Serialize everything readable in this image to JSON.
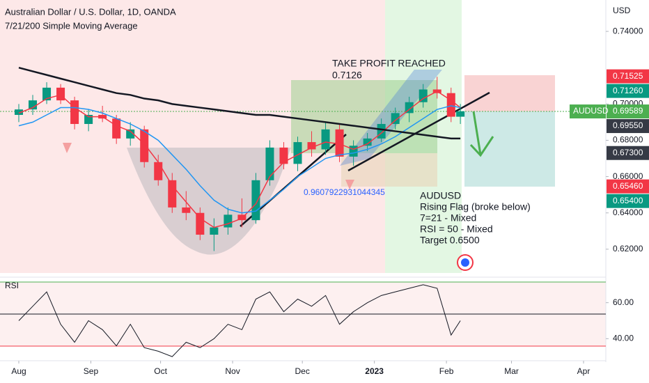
{
  "chart_data": {
    "type": "candlestick",
    "title": "Australian Dollar / U.S. Dollar, 1D, OANDA",
    "subtitle": "7/21/200 Simple Moving Average",
    "currency": "USD",
    "x": [
      0,
      6,
      12,
      18,
      24,
      30,
      36,
      42,
      48,
      54,
      60,
      66,
      72,
      78,
      84,
      90,
      96,
      102,
      108,
      114,
      120,
      126,
      132,
      138,
      144,
      150,
      156,
      162,
      168,
      174,
      180,
      186,
      190
    ],
    "open": [
      0.694,
      0.697,
      0.702,
      0.709,
      0.702,
      0.689,
      0.694,
      0.692,
      0.681,
      0.686,
      0.668,
      0.658,
      0.643,
      0.64,
      0.628,
      0.632,
      0.639,
      0.636,
      0.658,
      0.676,
      0.667,
      0.679,
      0.675,
      0.686,
      0.671,
      0.677,
      0.681,
      0.689,
      0.695,
      0.701,
      0.708,
      0.706,
      0.693
    ],
    "high": [
      0.7,
      0.705,
      0.712,
      0.711,
      0.704,
      0.697,
      0.699,
      0.694,
      0.69,
      0.688,
      0.672,
      0.662,
      0.652,
      0.643,
      0.637,
      0.643,
      0.648,
      0.662,
      0.68,
      0.679,
      0.682,
      0.685,
      0.69,
      0.689,
      0.68,
      0.684,
      0.692,
      0.698,
      0.704,
      0.711,
      0.715,
      0.709,
      0.7
    ],
    "low": [
      0.69,
      0.694,
      0.7,
      0.7,
      0.686,
      0.685,
      0.69,
      0.678,
      0.677,
      0.665,
      0.655,
      0.64,
      0.636,
      0.625,
      0.619,
      0.628,
      0.632,
      0.634,
      0.655,
      0.664,
      0.663,
      0.671,
      0.672,
      0.668,
      0.666,
      0.674,
      0.679,
      0.686,
      0.69,
      0.698,
      0.703,
      0.69,
      0.689
    ],
    "close": [
      0.697,
      0.702,
      0.709,
      0.702,
      0.689,
      0.694,
      0.692,
      0.681,
      0.686,
      0.668,
      0.658,
      0.643,
      0.64,
      0.628,
      0.632,
      0.639,
      0.636,
      0.658,
      0.676,
      0.667,
      0.679,
      0.675,
      0.686,
      0.671,
      0.677,
      0.681,
      0.689,
      0.695,
      0.701,
      0.708,
      0.706,
      0.693,
      0.696
    ],
    "up_color": "#089981",
    "down_color": "#f23645",
    "series": [
      {
        "color": "#f23645",
        "values": [
          0.695,
          0.698,
          0.703,
          0.705,
          0.698,
          0.693,
          0.693,
          0.688,
          0.685,
          0.678,
          0.668,
          0.655,
          0.646,
          0.637,
          0.632,
          0.634,
          0.637,
          0.645,
          0.66,
          0.668,
          0.672,
          0.676,
          0.679,
          0.678,
          0.675,
          0.678,
          0.684,
          0.691,
          0.697,
          0.703,
          0.707,
          0.702,
          0.698
        ]
      },
      {
        "color": "#2196f3",
        "values": [
          0.688,
          0.69,
          0.694,
          0.698,
          0.698,
          0.697,
          0.695,
          0.692,
          0.689,
          0.685,
          0.68,
          0.672,
          0.664,
          0.655,
          0.647,
          0.642,
          0.64,
          0.641,
          0.647,
          0.653,
          0.66,
          0.665,
          0.67,
          0.672,
          0.673,
          0.675,
          0.678,
          0.682,
          0.687,
          0.692,
          0.697,
          0.699,
          0.698
        ]
      },
      {
        "color": "#131722",
        "values": [
          0.72,
          0.718,
          0.716,
          0.714,
          0.712,
          0.71,
          0.708,
          0.706,
          0.705,
          0.703,
          0.702,
          0.7,
          0.699,
          0.698,
          0.697,
          0.696,
          0.695,
          0.694,
          0.694,
          0.693,
          0.692,
          0.691,
          0.69,
          0.689,
          0.688,
          0.687,
          0.686,
          0.685,
          0.684,
          0.683,
          0.682,
          0.681,
          0.681
        ]
      }
    ],
    "xlim": [
      0,
      243
    ],
    "xticks": [
      {
        "value": 0,
        "label": "Aug"
      },
      {
        "value": 31,
        "label": "Sep"
      },
      {
        "value": 61,
        "label": "Oct"
      },
      {
        "value": 92,
        "label": "Nov"
      },
      {
        "value": 122,
        "label": "Dec"
      },
      {
        "value": 153,
        "label": "2023"
      },
      {
        "value": 184,
        "label": "Feb"
      },
      {
        "value": 212,
        "label": "Mar"
      },
      {
        "value": 243,
        "label": "Apr"
      }
    ],
    "ylim": [
      0.6069,
      0.7573
    ],
    "yticks": [
      {
        "value": 0.74,
        "label": "0.74000"
      },
      {
        "value": 0.7,
        "label": "0.70000"
      },
      {
        "value": 0.68,
        "label": "0.68000"
      },
      {
        "value": 0.66,
        "label": "0.66000"
      },
      {
        "value": 0.64,
        "label": "0.64000"
      },
      {
        "value": 0.62,
        "label": "0.62000"
      }
    ],
    "price_badges": [
      {
        "value": 0.71525,
        "label": "0.71525",
        "color": "#f23645"
      },
      {
        "value": 0.7126,
        "label": "0.71260",
        "color": "#089981"
      },
      {
        "value": 0.69589,
        "label": "0.69589",
        "color": "#4caf50"
      },
      {
        "value": 0.6955,
        "label": "0.69550",
        "color": "#363a45"
      },
      {
        "value": 0.673,
        "label": "0.67300",
        "color": "#363a45"
      },
      {
        "value": 0.6546,
        "label": "0.65460",
        "color": "#f23645"
      },
      {
        "value": 0.654,
        "label": "0.65400",
        "color": "#089981"
      }
    ],
    "symbol": "AUDUSD",
    "annotations": [
      "TAKE PROFIT REACHED",
      "0.7126",
      "0.9607922931044345"
    ],
    "note_lines": [
      "AUDUSD",
      "Rising Flag (broke below)",
      "7=21 - Mixed",
      "RSI = 50 - Mixed",
      "Target 0.6500"
    ],
    "rsi": {
      "label": "RSI",
      "color": "#131722",
      "values": [
        50,
        58,
        66,
        48,
        38,
        50,
        45,
        36,
        48,
        35,
        33,
        30,
        38,
        35,
        40,
        48,
        45,
        62,
        66,
        55,
        62,
        58,
        64,
        48,
        55,
        60,
        64,
        66,
        68,
        70,
        68,
        42,
        50
      ],
      "ylim": [
        26.96,
        76.52
      ],
      "yticks": [
        {
          "value": 60,
          "label": "60.00"
        },
        {
          "value": 40,
          "label": "40.00"
        }
      ]
    }
  }
}
